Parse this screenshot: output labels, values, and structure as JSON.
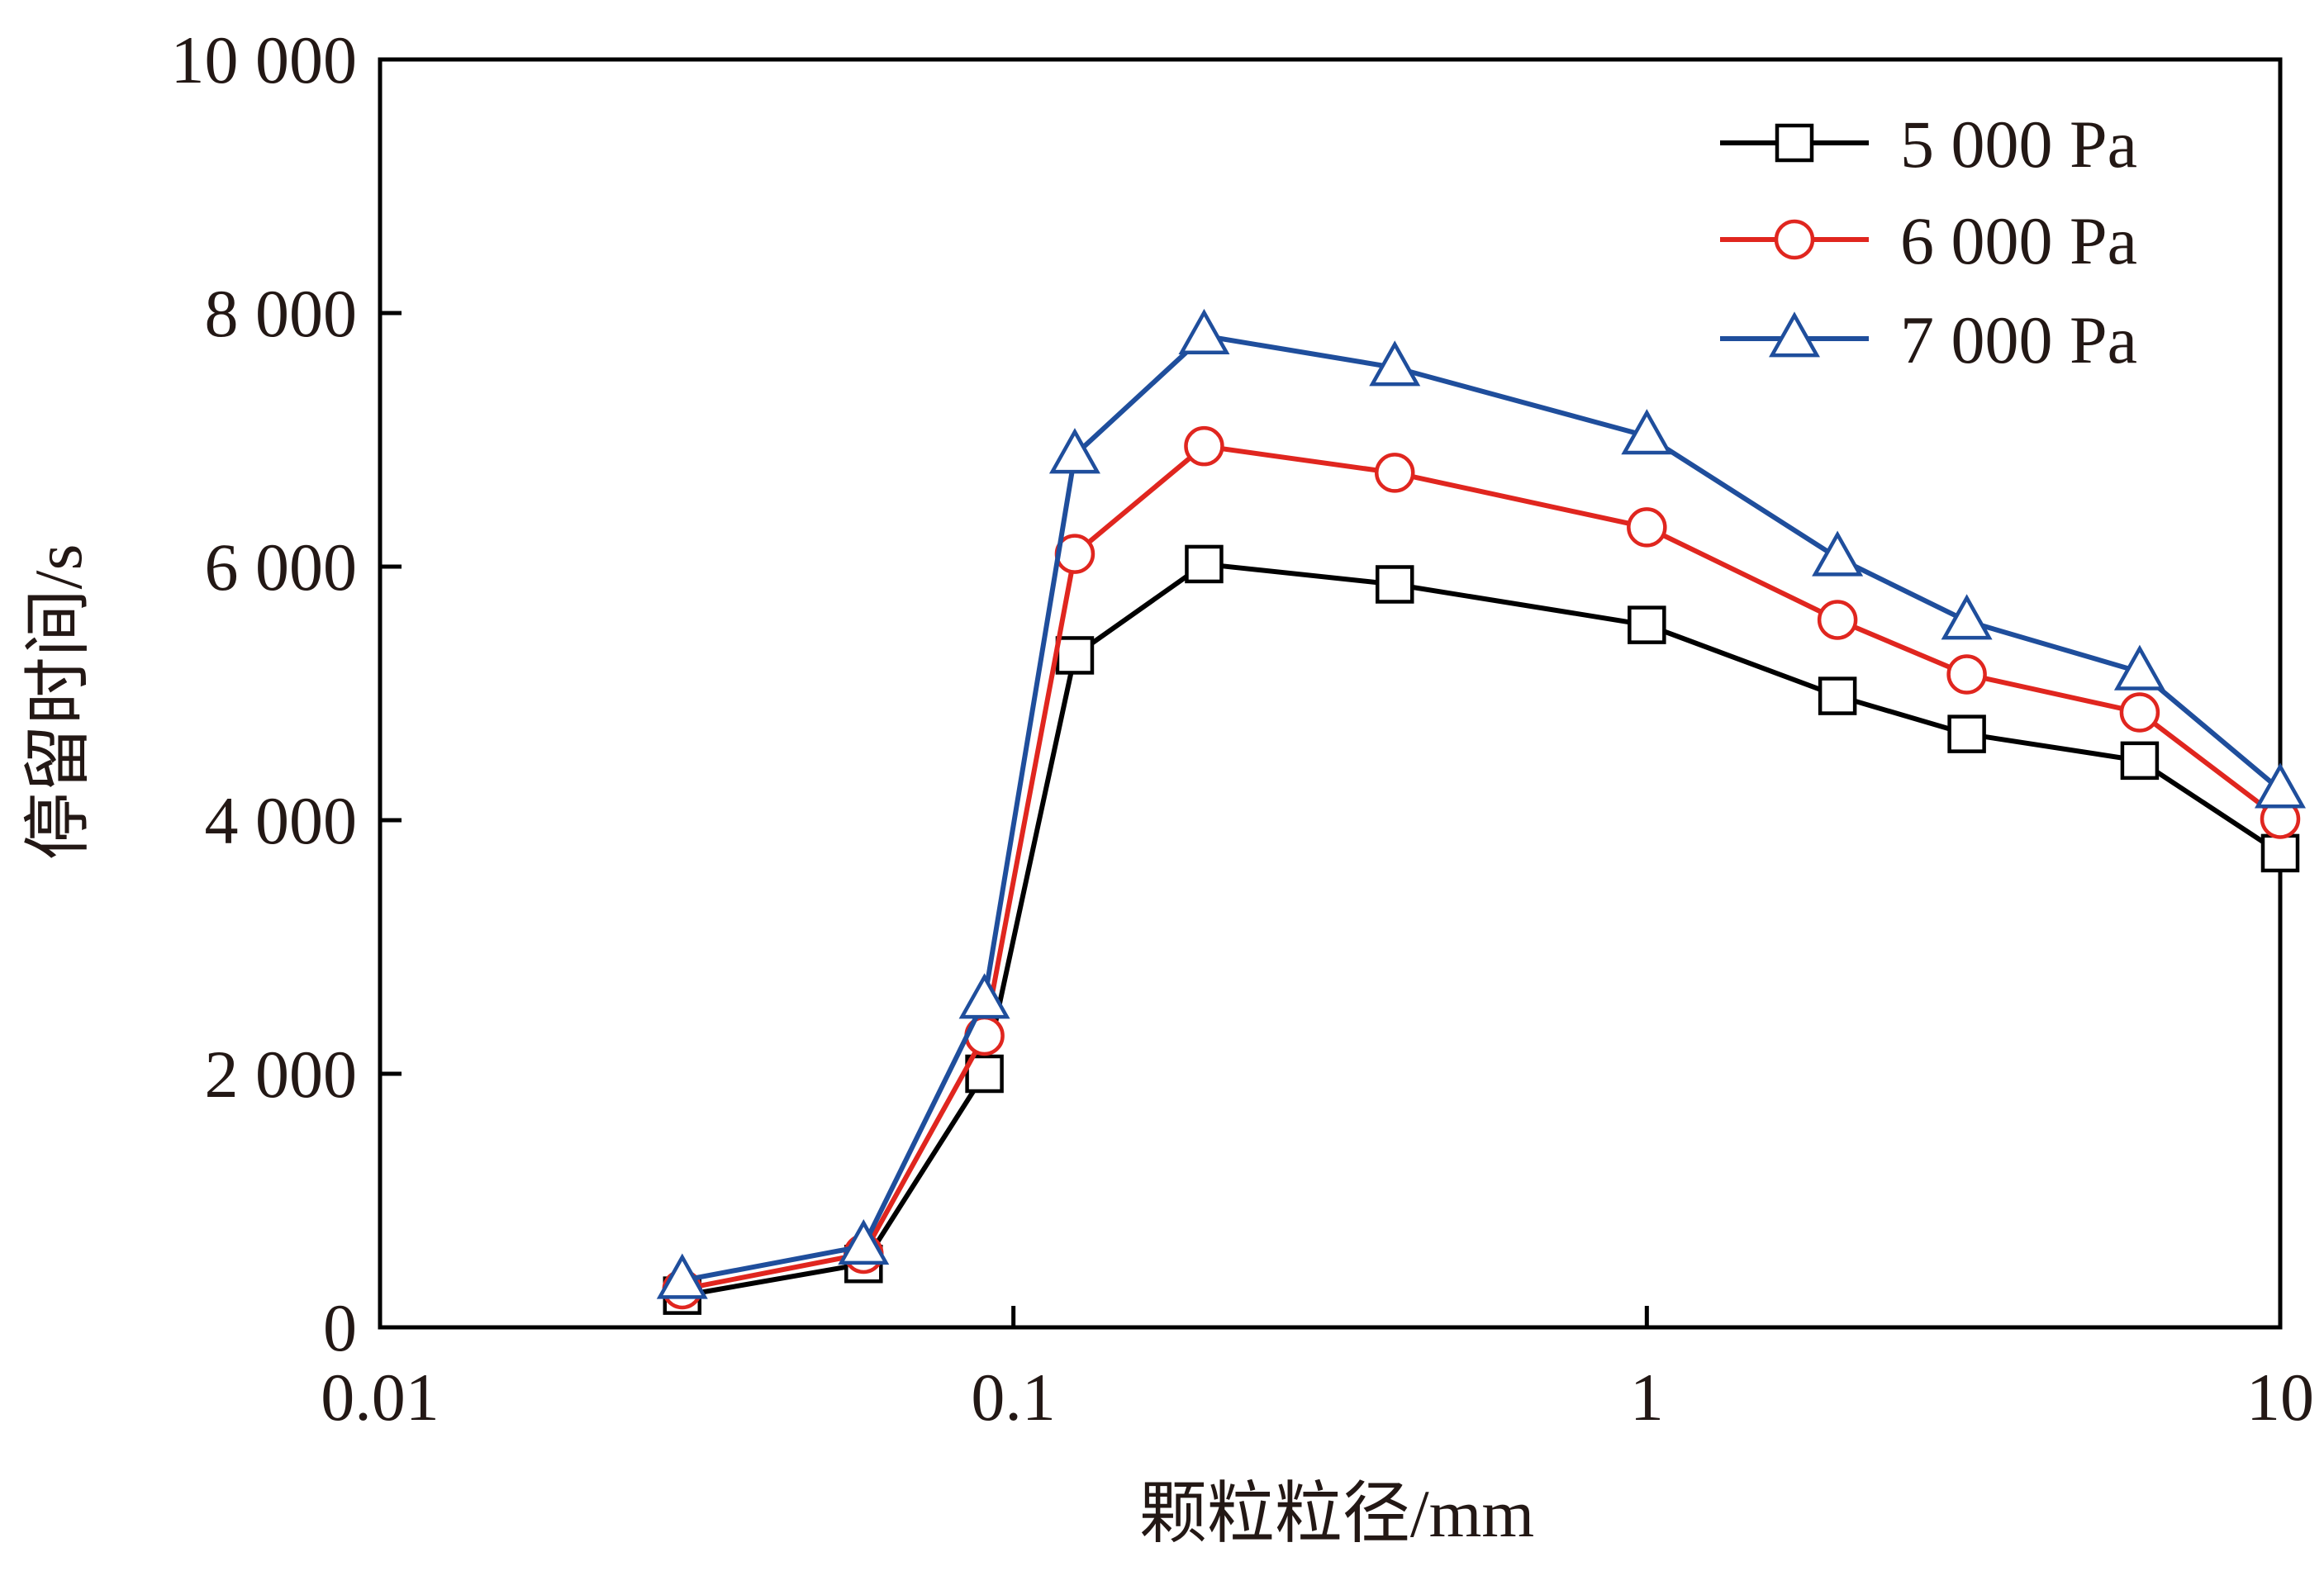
{
  "chart_data": {
    "type": "line",
    "title": "",
    "xlabel": "颗粒粒径/mm",
    "ylabel": "停留时间/s",
    "xscale": "log",
    "xlim": [
      0.01,
      10
    ],
    "ylim": [
      0,
      10000
    ],
    "xticks": [
      0.01,
      0.1,
      1,
      10
    ],
    "xtick_labels": [
      "0.01",
      "0.1",
      "1",
      "10"
    ],
    "yticks": [
      0,
      2000,
      4000,
      6000,
      8000,
      10000
    ],
    "ytick_labels": [
      "0",
      "2 000",
      "4 000",
      "6 000",
      "8 000",
      "10 000"
    ],
    "grid": false,
    "legend_position": "top-right",
    "x": [
      0.03,
      0.058,
      0.09,
      0.125,
      0.2,
      0.4,
      1,
      2,
      3.2,
      6,
      10
    ],
    "series": [
      {
        "name": "5 000 Pa",
        "color": "#000000",
        "marker": "square",
        "values": [
          250,
          500,
          2000,
          5300,
          6020,
          5860,
          5540,
          4980,
          4680,
          4470,
          3740
        ]
      },
      {
        "name": "6 000 Pa",
        "color": "#e0261f",
        "marker": "circle",
        "values": [
          300,
          580,
          2300,
          6100,
          6950,
          6740,
          6310,
          5580,
          5150,
          4850,
          4010
        ]
      },
      {
        "name": "7 000 Pa",
        "color": "#1f4e9c",
        "marker": "triangle",
        "values": [
          370,
          640,
          2580,
          6880,
          7820,
          7570,
          7030,
          6070,
          5570,
          5170,
          4240
        ]
      }
    ]
  }
}
